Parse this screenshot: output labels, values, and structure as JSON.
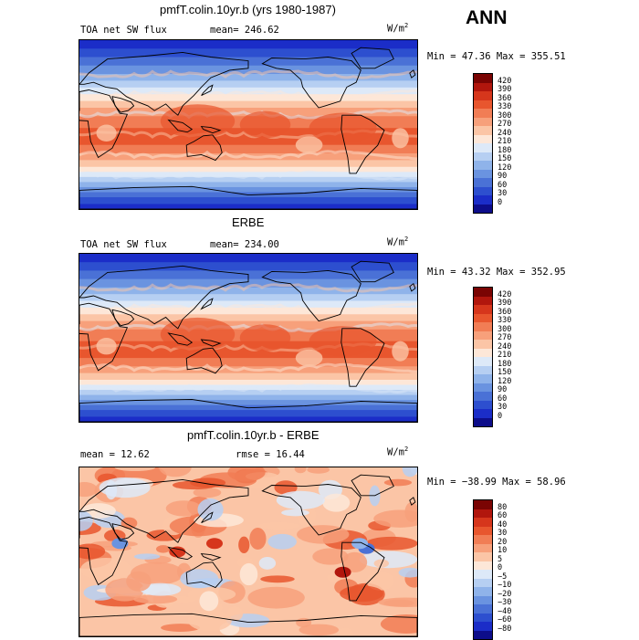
{
  "annual_label": "ANN",
  "panels": [
    {
      "title": "pmfT.colin.10yr.b (yrs 1980-1987)",
      "left_label": "TOA net SW flux",
      "stat_label": "mean= 246.62",
      "units_base": "W/m",
      "units_exp": "2",
      "minmax": "Min =  47.36 Max = 355.51",
      "colorbar_labels": [
        "420",
        "390",
        "360",
        "330",
        "300",
        "270",
        "240",
        "210",
        "180",
        "150",
        "120",
        "90",
        "60",
        "30",
        "0"
      ],
      "field": "flux"
    },
    {
      "title": "ERBE",
      "left_label": "TOA net SW flux",
      "stat_label": "mean= 234.00",
      "units_base": "W/m",
      "units_exp": "2",
      "minmax": "Min =  43.32 Max = 352.95",
      "colorbar_labels": [
        "420",
        "390",
        "360",
        "330",
        "300",
        "270",
        "240",
        "210",
        "180",
        "150",
        "120",
        "90",
        "60",
        "30",
        "0"
      ],
      "field": "flux"
    },
    {
      "title": "pmfT.colin.10yr.b - ERBE",
      "left_label": "mean =  12.62",
      "stat_label": "rmse =  16.44",
      "units_base": "W/m",
      "units_exp": "2",
      "minmax": "Min = −38.99 Max =  58.96",
      "colorbar_labels": [
        "80",
        "60",
        "40",
        "30",
        "20",
        "10",
        "5",
        "0",
        "−5",
        "−10",
        "−20",
        "−30",
        "−40",
        "−60",
        "−80"
      ],
      "field": "diff"
    }
  ],
  "colors": {
    "flux_scale": [
      "#7a0403",
      "#b1160d",
      "#d6361c",
      "#e8562e",
      "#f17d55",
      "#f7a07b",
      "#fbc5a6",
      "#fde7d8",
      "#dde9f8",
      "#b6cff2",
      "#8fb3ea",
      "#6a93e0",
      "#4a71d6",
      "#2d4fcf",
      "#1b2dc8",
      "#0d0d8a"
    ],
    "diff_scale": [
      "#7a0403",
      "#b1160d",
      "#d6361c",
      "#e8562e",
      "#f17d55",
      "#f7a07b",
      "#fbc5a6",
      "#fde7d8",
      "#dde9f8",
      "#b6cff2",
      "#8fb3ea",
      "#6a93e0",
      "#4a71d6",
      "#2d4fcf",
      "#1b2dc8",
      "#0d0d8a"
    ]
  }
}
